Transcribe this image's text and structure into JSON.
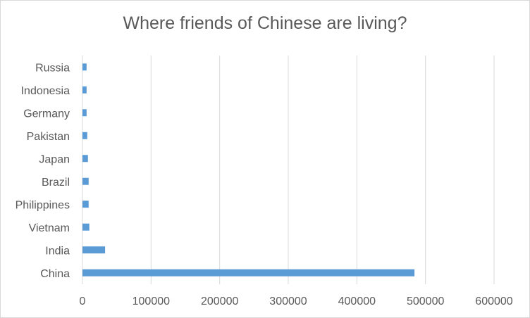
{
  "chart_data": {
    "type": "bar",
    "orientation": "horizontal",
    "title": "Where friends of Chinese are living?",
    "xlabel": "",
    "ylabel": "",
    "categories": [
      "Russia",
      "Indonesia",
      "Germany",
      "Pakistan",
      "Japan",
      "Brazil",
      "Philippines",
      "Vietnam",
      "India",
      "China"
    ],
    "values": [
      6000,
      6000,
      6000,
      7000,
      8000,
      9000,
      9000,
      10000,
      33000,
      484000
    ],
    "xlim": [
      0,
      600000
    ],
    "xticks": [
      0,
      100000,
      200000,
      300000,
      400000,
      500000,
      600000
    ],
    "xtick_labels": [
      "0",
      "100000",
      "200000",
      "300000",
      "400000",
      "500000",
      "600000"
    ],
    "grid": true,
    "legend": "none",
    "bar_color": "#5b9bd5",
    "grid_color": "#d9d9d9"
  }
}
